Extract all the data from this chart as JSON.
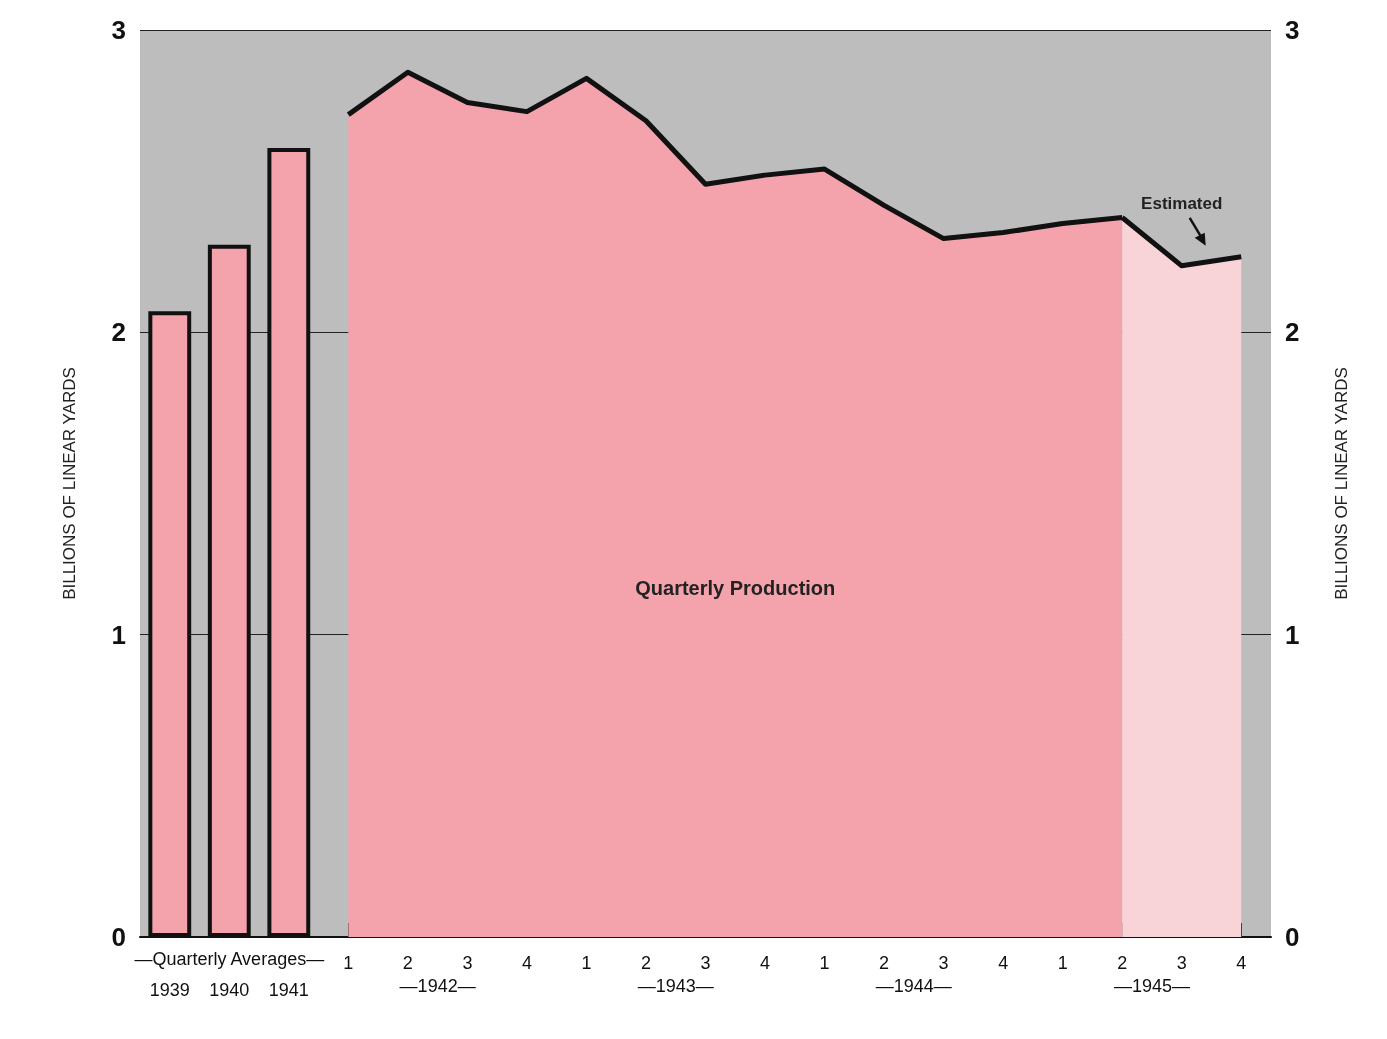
{
  "chart_data": {
    "type": "bar",
    "ylabel": "BILLIONS OF LINEAR YARDS",
    "y2label": "BILLIONS OF LINEAR YARDS",
    "categories": [
      "1939",
      "1940",
      "1941",
      "1",
      "2",
      "3",
      "4",
      "1",
      "2",
      "3",
      "4",
      "1",
      "2",
      "3",
      "4",
      "1",
      "2",
      "3",
      "4"
    ],
    "series": [
      {
        "color": "#f4a3ad",
        "values": [
          2.07,
          2.29,
          2.61,
          null,
          null,
          null,
          null,
          null,
          null,
          null,
          null,
          null,
          null,
          null,
          null,
          null,
          null,
          null,
          null
        ]
      },
      {
        "type": "area",
        "name": "Quarterly Production",
        "color": "#f4a3ad",
        "values": [
          null,
          null,
          null,
          2.72,
          2.86,
          2.76,
          2.73,
          2.84,
          2.7,
          2.49,
          2.52,
          2.54,
          2.42,
          2.31,
          2.33,
          2.36,
          2.38,
          null,
          null
        ]
      },
      {
        "type": "area",
        "name": "Estimated",
        "color": "#f8d3d8",
        "values": [
          null,
          null,
          null,
          null,
          null,
          null,
          null,
          null,
          null,
          null,
          null,
          null,
          null,
          null,
          null,
          null,
          2.38,
          2.22,
          2.25
        ]
      }
    ],
    "annotations": [
      "—Quarterly Averages—",
      "—1942—",
      "—1943—",
      "—1944—",
      "—1945—"
    ],
    "ylim": [
      0,
      3
    ],
    "yticks": [
      0,
      1,
      2,
      3
    ],
    "y2lim": [
      0,
      3
    ],
    "y2ticks": [
      0,
      1,
      2,
      3
    ],
    "grid": "y",
    "legend": false,
    "marker": "none",
    "line_style": "solid"
  }
}
